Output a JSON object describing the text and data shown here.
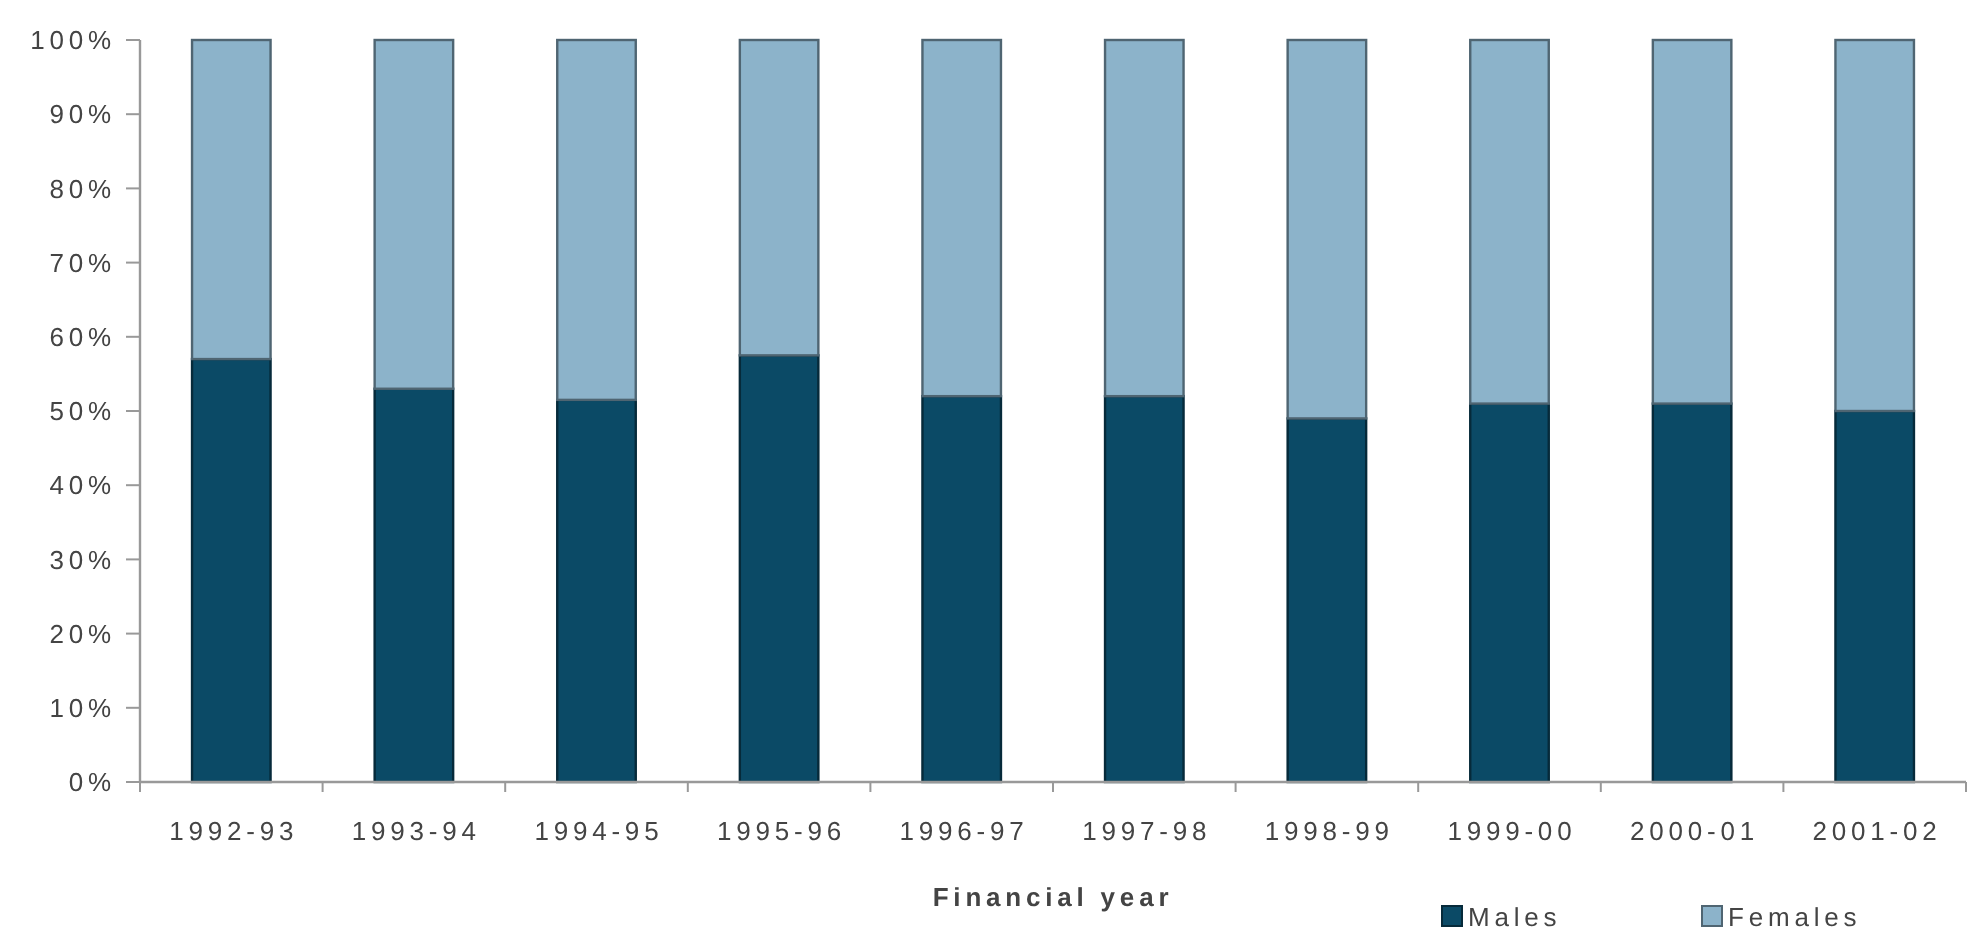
{
  "chart_data": {
    "type": "bar",
    "stacked": true,
    "xlabel": "Financial year",
    "categories": [
      "1992-93",
      "1993-94",
      "1994-95",
      "1995-96",
      "1996-97",
      "1997-98",
      "1998-99",
      "1999-00",
      "2000-01",
      "2001-02"
    ],
    "series": [
      {
        "name": "Males",
        "color": "#0b4a66",
        "values": [
          57,
          53,
          51.5,
          57.5,
          52,
          52,
          49,
          51,
          51,
          50
        ]
      },
      {
        "name": "Females",
        "color": "#8cb3ca",
        "values": [
          43,
          47,
          48.5,
          42.5,
          48,
          48,
          51,
          49,
          49,
          50
        ]
      }
    ],
    "ylim": [
      0,
      100
    ],
    "yticks": [
      {
        "value": 0,
        "label": "0%"
      },
      {
        "value": 10,
        "label": "10%"
      },
      {
        "value": 20,
        "label": "20%"
      },
      {
        "value": 30,
        "label": "30%"
      },
      {
        "value": 40,
        "label": "40%"
      },
      {
        "value": 50,
        "label": "50%"
      },
      {
        "value": 60,
        "label": "60%"
      },
      {
        "value": 70,
        "label": "70%"
      },
      {
        "value": 80,
        "label": "80%"
      },
      {
        "value": 90,
        "label": "90%"
      },
      {
        "value": 100,
        "label": "100%"
      }
    ],
    "legend": "bottom right"
  }
}
